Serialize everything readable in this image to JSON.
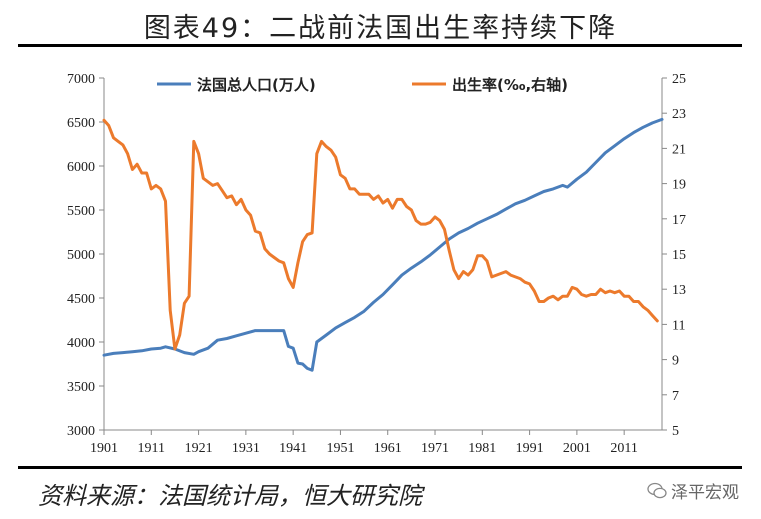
{
  "title": "图表49：二战前法国出生率持续下降",
  "source": "资料来源：法国统计局，恒大研究院",
  "watermark": "泽平宏观",
  "chart_data": {
    "type": "line",
    "x": {
      "ticks": [
        1901,
        1911,
        1921,
        1931,
        1941,
        1951,
        1961,
        1971,
        1981,
        1991,
        2001,
        2011
      ],
      "range": [
        1901,
        2019
      ]
    },
    "y_left": {
      "ticks": [
        3000,
        3500,
        4000,
        4500,
        5000,
        5500,
        6000,
        6500,
        7000
      ],
      "range": [
        3000,
        7000
      ]
    },
    "y_right": {
      "ticks": [
        5,
        7,
        9,
        11,
        13,
        15,
        17,
        19,
        21,
        23,
        25
      ],
      "range": [
        5,
        25
      ]
    },
    "legend_placement": "top",
    "series": [
      {
        "name": "法国总人口(万人)",
        "axis": "left",
        "color": "#4a7ebb",
        "points": [
          [
            1901,
            3850
          ],
          [
            1903,
            3870
          ],
          [
            1905,
            3880
          ],
          [
            1907,
            3890
          ],
          [
            1909,
            3900
          ],
          [
            1911,
            3920
          ],
          [
            1913,
            3930
          ],
          [
            1914,
            3945
          ],
          [
            1916,
            3920
          ],
          [
            1918,
            3880
          ],
          [
            1920,
            3860
          ],
          [
            1921,
            3890
          ],
          [
            1923,
            3930
          ],
          [
            1925,
            4020
          ],
          [
            1927,
            4040
          ],
          [
            1929,
            4070
          ],
          [
            1931,
            4100
          ],
          [
            1933,
            4130
          ],
          [
            1935,
            4130
          ],
          [
            1937,
            4130
          ],
          [
            1939,
            4130
          ],
          [
            1940,
            3950
          ],
          [
            1941,
            3930
          ],
          [
            1942,
            3760
          ],
          [
            1943,
            3750
          ],
          [
            1944,
            3700
          ],
          [
            1945,
            3680
          ],
          [
            1946,
            4000
          ],
          [
            1948,
            4080
          ],
          [
            1950,
            4160
          ],
          [
            1952,
            4220
          ],
          [
            1954,
            4280
          ],
          [
            1956,
            4350
          ],
          [
            1958,
            4450
          ],
          [
            1960,
            4540
          ],
          [
            1962,
            4650
          ],
          [
            1964,
            4760
          ],
          [
            1966,
            4840
          ],
          [
            1968,
            4910
          ],
          [
            1970,
            4990
          ],
          [
            1972,
            5080
          ],
          [
            1974,
            5170
          ],
          [
            1976,
            5240
          ],
          [
            1978,
            5290
          ],
          [
            1980,
            5350
          ],
          [
            1982,
            5400
          ],
          [
            1984,
            5450
          ],
          [
            1986,
            5510
          ],
          [
            1988,
            5570
          ],
          [
            1990,
            5610
          ],
          [
            1992,
            5660
          ],
          [
            1994,
            5710
          ],
          [
            1996,
            5740
          ],
          [
            1998,
            5780
          ],
          [
            1999,
            5760
          ],
          [
            2001,
            5850
          ],
          [
            2003,
            5930
          ],
          [
            2005,
            6040
          ],
          [
            2007,
            6150
          ],
          [
            2009,
            6230
          ],
          [
            2011,
            6310
          ],
          [
            2013,
            6380
          ],
          [
            2015,
            6440
          ],
          [
            2017,
            6490
          ],
          [
            2019,
            6530
          ]
        ]
      },
      {
        "name": "出生率(‰,右轴)",
        "axis": "right",
        "color": "#ec7a2c",
        "points": [
          [
            1901,
            22.6
          ],
          [
            1902,
            22.3
          ],
          [
            1903,
            21.6
          ],
          [
            1904,
            21.4
          ],
          [
            1905,
            21.2
          ],
          [
            1906,
            20.7
          ],
          [
            1907,
            19.8
          ],
          [
            1908,
            20.1
          ],
          [
            1909,
            19.6
          ],
          [
            1910,
            19.6
          ],
          [
            1911,
            18.7
          ],
          [
            1912,
            18.9
          ],
          [
            1913,
            18.7
          ],
          [
            1914,
            18.0
          ],
          [
            1915,
            11.8
          ],
          [
            1916,
            9.6
          ],
          [
            1917,
            10.4
          ],
          [
            1918,
            12.2
          ],
          [
            1919,
            12.6
          ],
          [
            1920,
            21.4
          ],
          [
            1921,
            20.7
          ],
          [
            1922,
            19.3
          ],
          [
            1923,
            19.1
          ],
          [
            1924,
            18.9
          ],
          [
            1925,
            19.0
          ],
          [
            1926,
            18.6
          ],
          [
            1927,
            18.2
          ],
          [
            1928,
            18.3
          ],
          [
            1929,
            17.8
          ],
          [
            1930,
            18.1
          ],
          [
            1931,
            17.5
          ],
          [
            1932,
            17.2
          ],
          [
            1933,
            16.3
          ],
          [
            1934,
            16.2
          ],
          [
            1935,
            15.3
          ],
          [
            1936,
            15.0
          ],
          [
            1937,
            14.8
          ],
          [
            1938,
            14.6
          ],
          [
            1939,
            14.5
          ],
          [
            1940,
            13.6
          ],
          [
            1941,
            13.1
          ],
          [
            1942,
            14.5
          ],
          [
            1943,
            15.7
          ],
          [
            1944,
            16.1
          ],
          [
            1945,
            16.2
          ],
          [
            1946,
            20.7
          ],
          [
            1947,
            21.4
          ],
          [
            1948,
            21.1
          ],
          [
            1949,
            20.9
          ],
          [
            1950,
            20.5
          ],
          [
            1951,
            19.5
          ],
          [
            1952,
            19.3
          ],
          [
            1953,
            18.7
          ],
          [
            1954,
            18.7
          ],
          [
            1955,
            18.4
          ],
          [
            1956,
            18.4
          ],
          [
            1957,
            18.4
          ],
          [
            1958,
            18.1
          ],
          [
            1959,
            18.3
          ],
          [
            1960,
            17.9
          ],
          [
            1961,
            18.1
          ],
          [
            1962,
            17.6
          ],
          [
            1963,
            18.1
          ],
          [
            1964,
            18.1
          ],
          [
            1965,
            17.7
          ],
          [
            1966,
            17.5
          ],
          [
            1967,
            16.9
          ],
          [
            1968,
            16.7
          ],
          [
            1969,
            16.7
          ],
          [
            1970,
            16.8
          ],
          [
            1971,
            17.1
          ],
          [
            1972,
            16.9
          ],
          [
            1973,
            16.4
          ],
          [
            1974,
            15.2
          ],
          [
            1975,
            14.1
          ],
          [
            1976,
            13.6
          ],
          [
            1977,
            14.0
          ],
          [
            1978,
            13.8
          ],
          [
            1979,
            14.1
          ],
          [
            1980,
            14.9
          ],
          [
            1981,
            14.9
          ],
          [
            1982,
            14.6
          ],
          [
            1983,
            13.7
          ],
          [
            1984,
            13.8
          ],
          [
            1985,
            13.9
          ],
          [
            1986,
            14.0
          ],
          [
            1987,
            13.8
          ],
          [
            1988,
            13.7
          ],
          [
            1989,
            13.6
          ],
          [
            1990,
            13.4
          ],
          [
            1991,
            13.3
          ],
          [
            1992,
            12.9
          ],
          [
            1993,
            12.3
          ],
          [
            1994,
            12.3
          ],
          [
            1995,
            12.5
          ],
          [
            1996,
            12.6
          ],
          [
            1997,
            12.4
          ],
          [
            1998,
            12.6
          ],
          [
            1999,
            12.6
          ],
          [
            2000,
            13.1
          ],
          [
            2001,
            13.0
          ],
          [
            2002,
            12.7
          ],
          [
            2003,
            12.6
          ],
          [
            2004,
            12.7
          ],
          [
            2005,
            12.7
          ],
          [
            2006,
            13.0
          ],
          [
            2007,
            12.8
          ],
          [
            2008,
            12.9
          ],
          [
            2009,
            12.8
          ],
          [
            2010,
            12.9
          ],
          [
            2011,
            12.6
          ],
          [
            2012,
            12.6
          ],
          [
            2013,
            12.3
          ],
          [
            2014,
            12.3
          ],
          [
            2015,
            12.0
          ],
          [
            2016,
            11.8
          ],
          [
            2017,
            11.5
          ],
          [
            2018,
            11.2
          ]
        ]
      }
    ]
  }
}
